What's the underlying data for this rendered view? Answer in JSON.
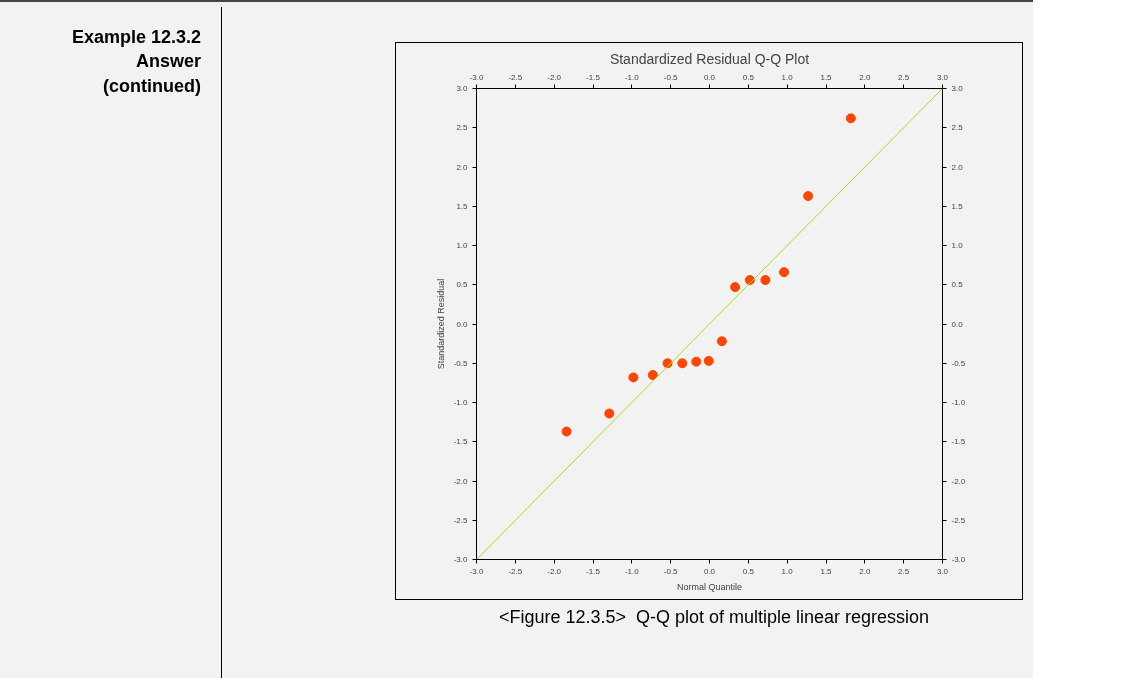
{
  "chart_data": {
    "type": "scatter",
    "title": "Standardized Residual Q-Q Plot",
    "xlabel": "Normal Quantile",
    "ylabel": "Standardized Residual",
    "annotations": [
      "Example  12.3.2\nAnswer\n(continued)",
      "<Figure 12.3.5>   Q-Q plot of multiple linear regression"
    ],
    "series": [
      {
        "color": "#ff4500",
        "marker": "circle",
        "x": [
          -1.84,
          -1.29,
          -0.98,
          -0.73,
          -0.54,
          -0.35,
          -0.17,
          -0.01,
          0.16,
          0.33,
          0.52,
          0.72,
          0.96,
          1.27,
          1.82
        ],
        "values": [
          -1.37,
          -1.14,
          -0.68,
          -0.65,
          -0.5,
          -0.5,
          -0.48,
          -0.47,
          -0.22,
          0.47,
          0.56,
          0.56,
          0.66,
          1.63,
          2.62
        ]
      },
      {
        "type": "line",
        "marker": "none",
        "color": "#aadd22",
        "x": [
          -3,
          3
        ],
        "values": [
          -3,
          3
        ]
      }
    ],
    "xlim": [
      -3,
      3
    ],
    "ylim": [
      -3,
      3
    ],
    "x2lim": [
      -3,
      3
    ],
    "y2lim": [
      -3,
      3
    ],
    "xticks": [
      {
        "value": -3,
        "label": "-3.0"
      },
      {
        "value": -2.5,
        "label": "-2.5"
      },
      {
        "value": -2,
        "label": "-2.0"
      },
      {
        "value": -1.5,
        "label": "-1.5"
      },
      {
        "value": -1,
        "label": "-1.0"
      },
      {
        "value": -0.5,
        "label": "-0.5"
      },
      {
        "value": 0,
        "label": "0.0"
      },
      {
        "value": 0.5,
        "label": "0.5"
      },
      {
        "value": 1,
        "label": "1.0"
      },
      {
        "value": 1.5,
        "label": "1.5"
      },
      {
        "value": 2,
        "label": "2.0"
      },
      {
        "value": 2.5,
        "label": "2.5"
      },
      {
        "value": 3,
        "label": "3.0"
      }
    ],
    "x2ticks": [
      {
        "value": -3,
        "label": "-3.0"
      },
      {
        "value": -2.5,
        "label": "-2.5"
      },
      {
        "value": -2,
        "label": "-2.0"
      },
      {
        "value": -1.5,
        "label": "-1.5"
      },
      {
        "value": -1,
        "label": "-1.0"
      },
      {
        "value": -0.5,
        "label": "-0.5"
      },
      {
        "value": 0,
        "label": "0.0"
      },
      {
        "value": 0.5,
        "label": "0.5"
      },
      {
        "value": 1,
        "label": "1.0"
      },
      {
        "value": 1.5,
        "label": "1.5"
      },
      {
        "value": 2,
        "label": "2.0"
      },
      {
        "value": 2.5,
        "label": "2.5"
      },
      {
        "value": 3,
        "label": "3.0"
      }
    ],
    "yticks": [
      {
        "value": -3,
        "label": "-3.0"
      },
      {
        "value": -2.5,
        "label": "-2.5"
      },
      {
        "value": -2,
        "label": "-2.0"
      },
      {
        "value": -1.5,
        "label": "-1.5"
      },
      {
        "value": -1,
        "label": "-1.0"
      },
      {
        "value": -0.5,
        "label": "-0.5"
      },
      {
        "value": 0,
        "label": "0.0"
      },
      {
        "value": 0.5,
        "label": "0.5"
      },
      {
        "value": 1,
        "label": "1.0"
      },
      {
        "value": 1.5,
        "label": "1.5"
      },
      {
        "value": 2,
        "label": "2.0"
      },
      {
        "value": 2.5,
        "label": "2.5"
      },
      {
        "value": 3,
        "label": "3.0"
      }
    ],
    "y2ticks": [
      {
        "value": -3,
        "label": "-3.0"
      },
      {
        "value": -2.5,
        "label": "-2.5"
      },
      {
        "value": -2,
        "label": "-2.0"
      },
      {
        "value": -1.5,
        "label": "-1.5"
      },
      {
        "value": -1,
        "label": "-1.0"
      },
      {
        "value": -0.5,
        "label": "-0.5"
      },
      {
        "value": 0,
        "label": "0.0"
      },
      {
        "value": 0.5,
        "label": "0.5"
      },
      {
        "value": 1,
        "label": "1.0"
      },
      {
        "value": 1.5,
        "label": "1.5"
      },
      {
        "value": 2,
        "label": "2.0"
      },
      {
        "value": 2.5,
        "label": "2.5"
      },
      {
        "value": 3,
        "label": "3.0"
      }
    ],
    "grid": false
  }
}
